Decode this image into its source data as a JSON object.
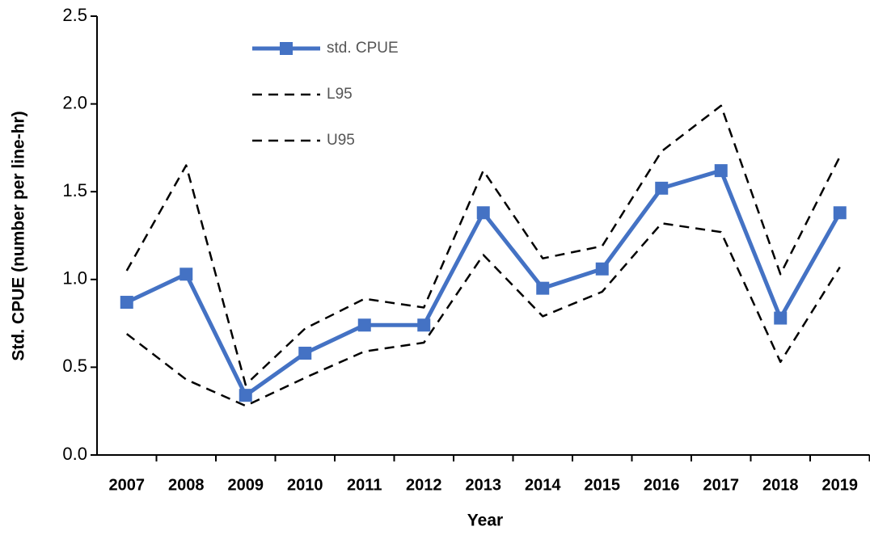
{
  "chart_data": {
    "type": "line",
    "x_label": "Year",
    "y_label": "Std. CPUE (number per line-hr)",
    "categories": [
      "2007",
      "2008",
      "2009",
      "2010",
      "2011",
      "2012",
      "2013",
      "2014",
      "2015",
      "2016",
      "2017",
      "2018",
      "2019"
    ],
    "series": [
      {
        "name": "std. CPUE",
        "color": "#4472c4",
        "style": "solid-marker",
        "values": [
          0.87,
          1.03,
          0.34,
          0.58,
          0.74,
          0.74,
          1.38,
          0.95,
          1.06,
          1.52,
          1.62,
          0.78,
          1.38
        ]
      },
      {
        "name": "L95",
        "color": "#000000",
        "style": "dashed",
        "values": [
          0.69,
          0.43,
          0.28,
          0.44,
          0.59,
          0.64,
          1.14,
          0.79,
          0.93,
          1.32,
          1.27,
          0.53,
          1.07
        ]
      },
      {
        "name": "U95",
        "color": "#000000",
        "style": "dashed",
        "values": [
          1.05,
          1.65,
          0.4,
          0.72,
          0.89,
          0.84,
          1.62,
          1.12,
          1.19,
          1.73,
          1.99,
          1.03,
          1.7
        ]
      }
    ],
    "ylim": [
      0,
      2.5
    ],
    "yticks": [
      {
        "value": 0,
        "label": "0.0"
      },
      0.5,
      {
        "value": 1,
        "label": "1.0"
      },
      1.5,
      {
        "value": 2,
        "label": "2.0"
      },
      2.5
    ],
    "grid": false,
    "legend": "upper left"
  }
}
